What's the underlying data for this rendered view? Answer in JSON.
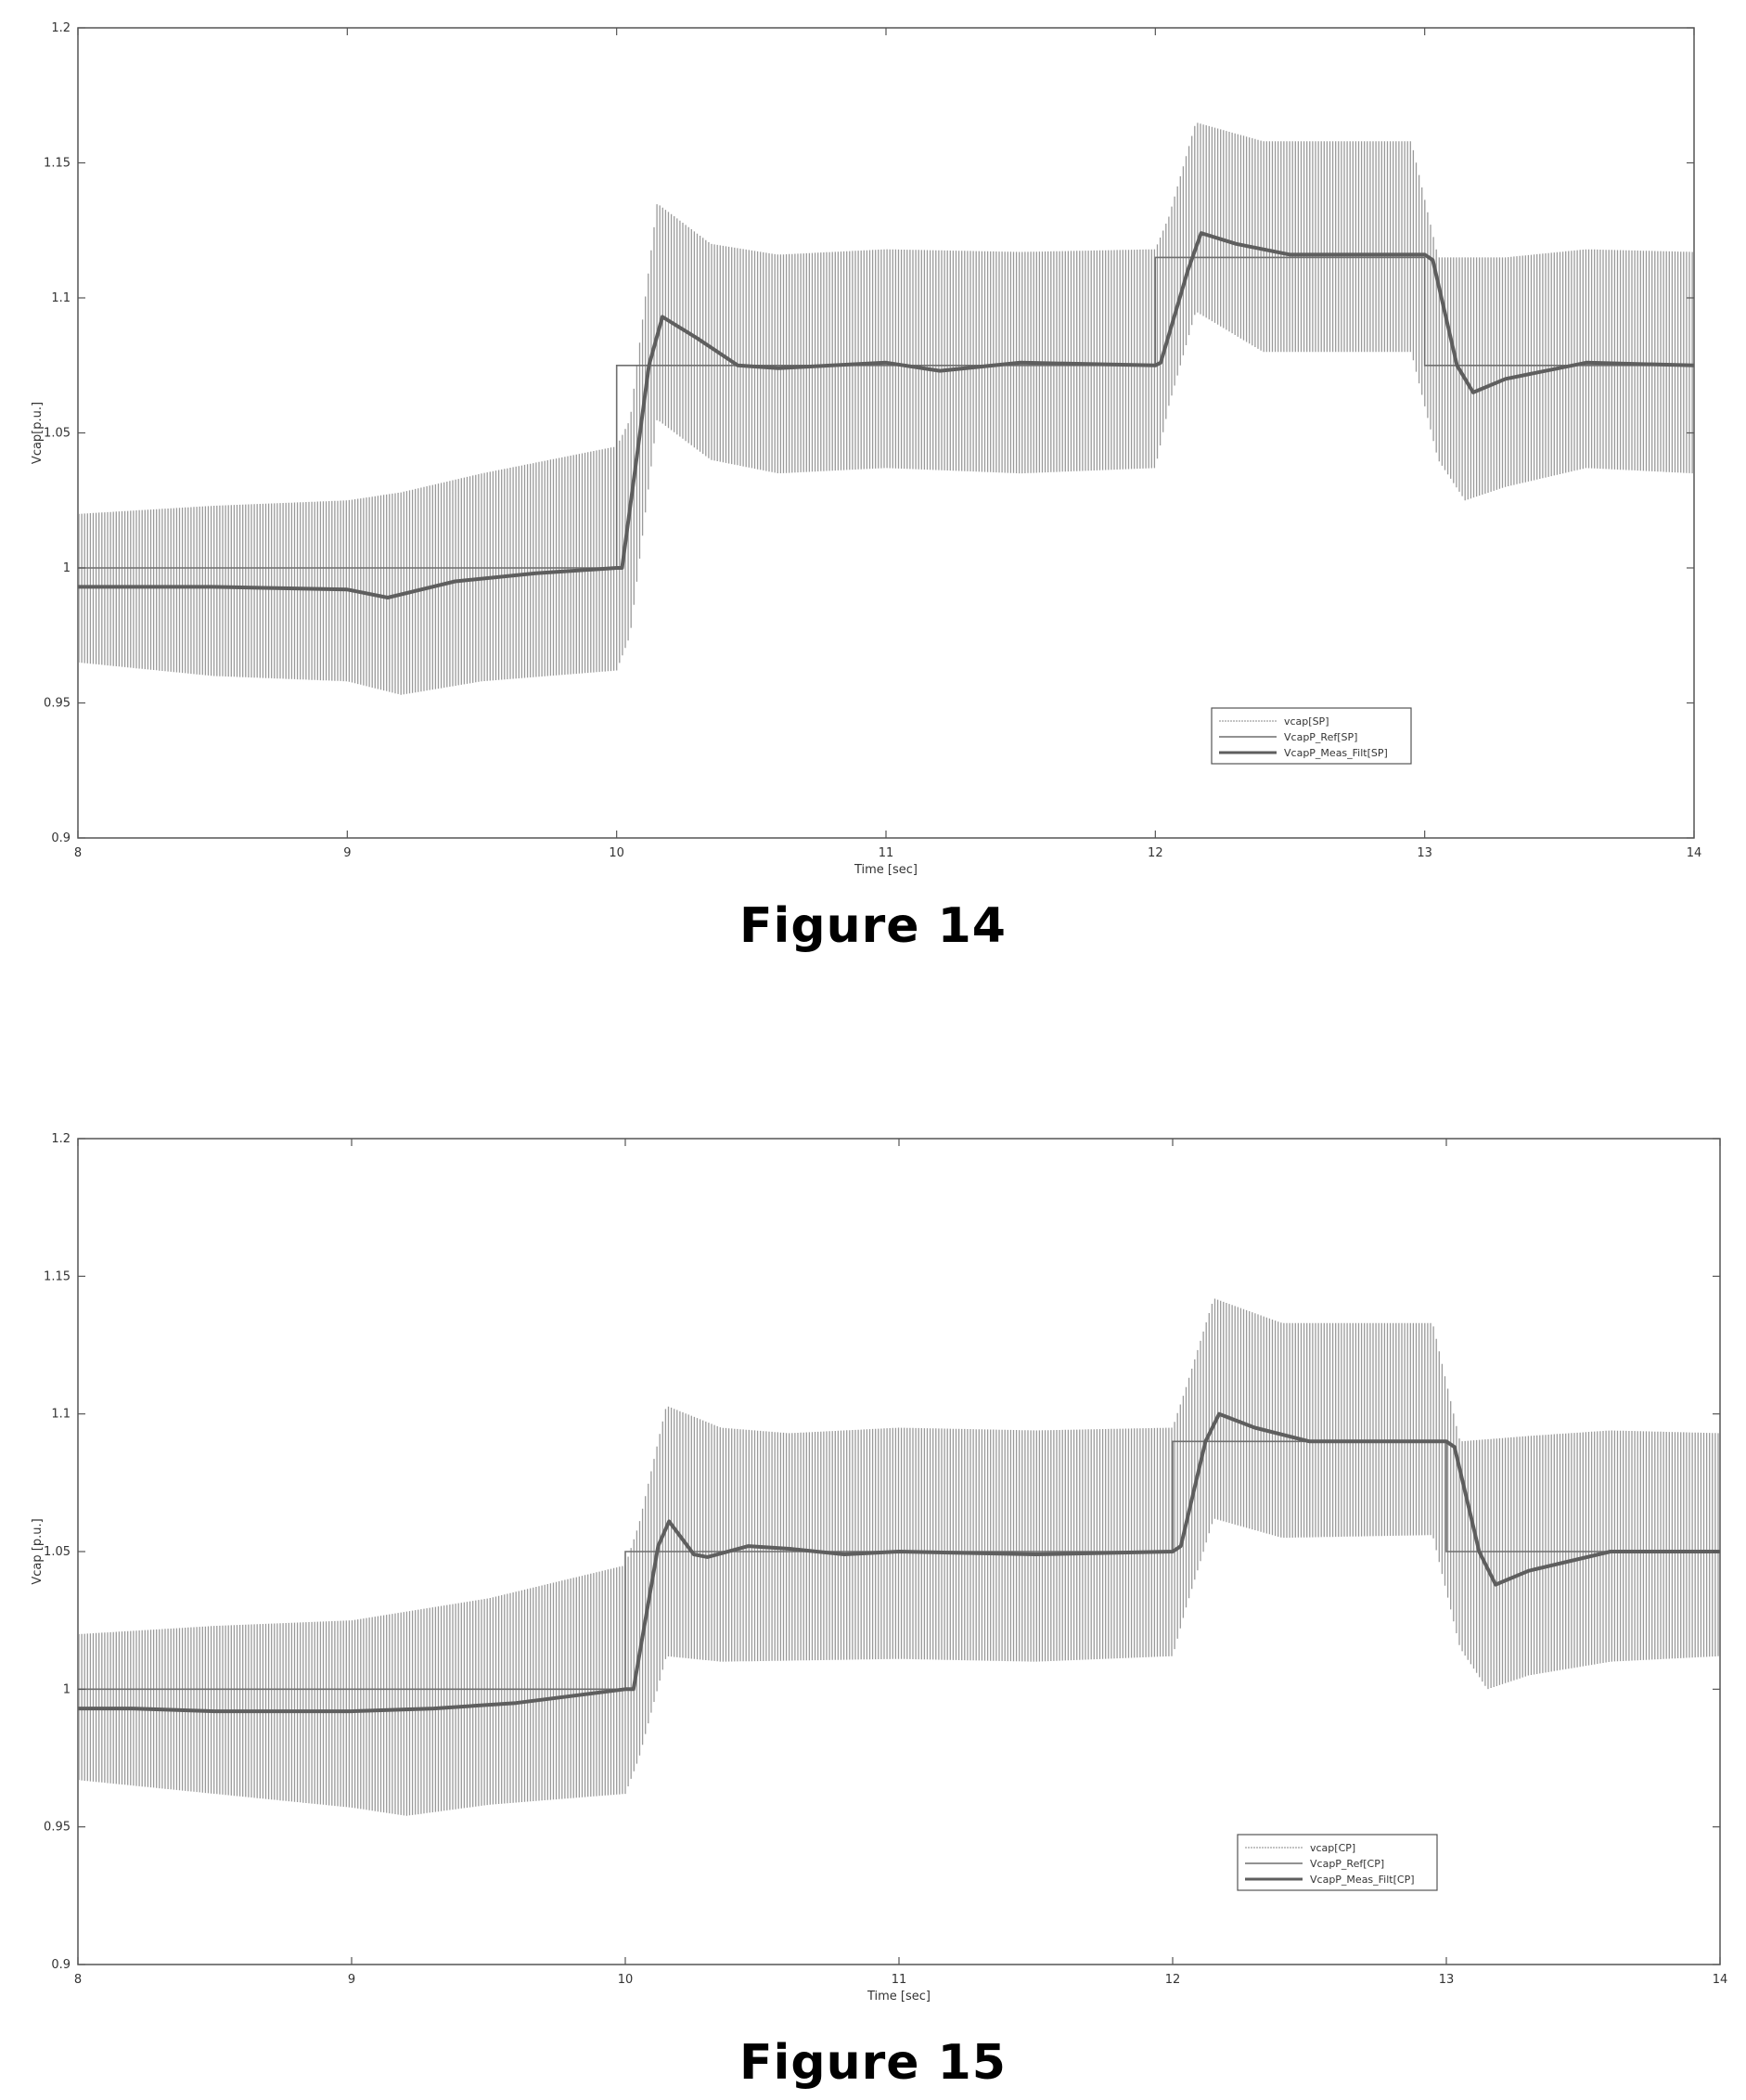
{
  "chart_data": [
    {
      "type": "line",
      "caption": "Figure 14",
      "xlabel": "Time [sec]",
      "ylabel": "Vcap[p.u.]",
      "xlim": [
        8,
        14
      ],
      "ylim": [
        0.9,
        1.2
      ],
      "xticks": [
        8,
        9,
        10,
        11,
        12,
        13,
        14
      ],
      "yticks": [
        0.9,
        0.95,
        1,
        1.05,
        1.1,
        1.15,
        1.2
      ],
      "ytick_labels": [
        "0.9",
        "0.95",
        "1",
        "1.05",
        "1.1",
        "1.15",
        "1.2"
      ],
      "grid": false,
      "legend_position": "lower-right",
      "series": [
        {
          "name": "vcap[SP]",
          "kind": "ripple",
          "upper": [
            [
              8,
              1.02
            ],
            [
              8.5,
              1.023
            ],
            [
              9,
              1.025
            ],
            [
              9.2,
              1.028
            ],
            [
              9.5,
              1.035
            ],
            [
              10,
              1.045
            ],
            [
              10.05,
              1.055
            ],
            [
              10.15,
              1.135
            ],
            [
              10.35,
              1.12
            ],
            [
              10.6,
              1.116
            ],
            [
              11,
              1.118
            ],
            [
              11.5,
              1.117
            ],
            [
              12,
              1.118
            ],
            [
              12.05,
              1.13
            ],
            [
              12.15,
              1.165
            ],
            [
              12.4,
              1.158
            ],
            [
              12.95,
              1.158
            ],
            [
              13.05,
              1.115
            ],
            [
              13.3,
              1.115
            ],
            [
              13.6,
              1.118
            ],
            [
              14,
              1.117
            ]
          ],
          "lower": [
            [
              8,
              0.965
            ],
            [
              8.5,
              0.96
            ],
            [
              9,
              0.958
            ],
            [
              9.2,
              0.953
            ],
            [
              9.5,
              0.958
            ],
            [
              10,
              0.962
            ],
            [
              10.05,
              0.975
            ],
            [
              10.15,
              1.055
            ],
            [
              10.35,
              1.04
            ],
            [
              10.6,
              1.035
            ],
            [
              11,
              1.037
            ],
            [
              11.5,
              1.035
            ],
            [
              12,
              1.037
            ],
            [
              12.05,
              1.06
            ],
            [
              12.15,
              1.095
            ],
            [
              12.4,
              1.08
            ],
            [
              12.95,
              1.08
            ],
            [
              13.05,
              1.04
            ],
            [
              13.15,
              1.025
            ],
            [
              13.3,
              1.03
            ],
            [
              13.6,
              1.037
            ],
            [
              14,
              1.035
            ]
          ]
        },
        {
          "name": "VcapP_Ref[SP]",
          "kind": "step",
          "points": [
            [
              8,
              1.0
            ],
            [
              10,
              1.0
            ],
            [
              10,
              1.075
            ],
            [
              12,
              1.075
            ],
            [
              12,
              1.115
            ],
            [
              13,
              1.115
            ],
            [
              13,
              1.075
            ],
            [
              14,
              1.075
            ]
          ]
        },
        {
          "name": "VcapP_Meas_Filt[SP]",
          "kind": "line",
          "points": [
            [
              8,
              0.993
            ],
            [
              8.5,
              0.993
            ],
            [
              9,
              0.992
            ],
            [
              9.15,
              0.989
            ],
            [
              9.4,
              0.995
            ],
            [
              9.7,
              0.998
            ],
            [
              10,
              1.0
            ],
            [
              10.02,
              1.0
            ],
            [
              10.12,
              1.075
            ],
            [
              10.17,
              1.093
            ],
            [
              10.3,
              1.085
            ],
            [
              10.45,
              1.075
            ],
            [
              10.6,
              1.074
            ],
            [
              11,
              1.076
            ],
            [
              11.2,
              1.073
            ],
            [
              11.5,
              1.076
            ],
            [
              12,
              1.075
            ],
            [
              12.02,
              1.076
            ],
            [
              12.12,
              1.11
            ],
            [
              12.17,
              1.124
            ],
            [
              12.3,
              1.12
            ],
            [
              12.5,
              1.116
            ],
            [
              13,
              1.116
            ],
            [
              13.03,
              1.114
            ],
            [
              13.12,
              1.075
            ],
            [
              13.18,
              1.065
            ],
            [
              13.3,
              1.07
            ],
            [
              13.6,
              1.076
            ],
            [
              14,
              1.075
            ]
          ]
        }
      ]
    },
    {
      "type": "line",
      "caption": "Figure 15",
      "xlabel": "Time [sec]",
      "ylabel": "Vcap [p.u.]",
      "xlim": [
        8,
        14
      ],
      "ylim": [
        0.9,
        1.2
      ],
      "xticks": [
        8,
        9,
        10,
        11,
        12,
        13,
        14
      ],
      "yticks": [
        0.9,
        0.95,
        1,
        1.05,
        1.1,
        1.15,
        1.2
      ],
      "ytick_labels": [
        "0.9",
        "0.95",
        "1",
        "1.05",
        "1.1",
        "1.15",
        "1.2"
      ],
      "grid": false,
      "legend_position": "lower-right",
      "series": [
        {
          "name": "vcap[CP]",
          "kind": "ripple",
          "upper": [
            [
              8,
              1.02
            ],
            [
              8.5,
              1.023
            ],
            [
              9,
              1.025
            ],
            [
              9.5,
              1.033
            ],
            [
              10,
              1.045
            ],
            [
              10.05,
              1.06
            ],
            [
              10.15,
              1.103
            ],
            [
              10.35,
              1.095
            ],
            [
              10.6,
              1.093
            ],
            [
              11,
              1.095
            ],
            [
              11.5,
              1.094
            ],
            [
              12,
              1.095
            ],
            [
              12.05,
              1.11
            ],
            [
              12.15,
              1.142
            ],
            [
              12.4,
              1.133
            ],
            [
              12.95,
              1.133
            ],
            [
              13.05,
              1.09
            ],
            [
              13.3,
              1.092
            ],
            [
              13.6,
              1.094
            ],
            [
              14,
              1.093
            ]
          ],
          "lower": [
            [
              8,
              0.967
            ],
            [
              8.5,
              0.962
            ],
            [
              9,
              0.957
            ],
            [
              9.2,
              0.954
            ],
            [
              9.5,
              0.958
            ],
            [
              10,
              0.962
            ],
            [
              10.05,
              0.975
            ],
            [
              10.15,
              1.012
            ],
            [
              10.35,
              1.01
            ],
            [
              11,
              1.011
            ],
            [
              11.5,
              1.01
            ],
            [
              12,
              1.012
            ],
            [
              12.05,
              1.03
            ],
            [
              12.15,
              1.062
            ],
            [
              12.4,
              1.055
            ],
            [
              12.95,
              1.056
            ],
            [
              13.05,
              1.015
            ],
            [
              13.15,
              1.0
            ],
            [
              13.3,
              1.005
            ],
            [
              13.6,
              1.01
            ],
            [
              14,
              1.012
            ]
          ]
        },
        {
          "name": "VcapP_Ref[CP]",
          "kind": "step",
          "points": [
            [
              8,
              1.0
            ],
            [
              10,
              1.0
            ],
            [
              10,
              1.05
            ],
            [
              12,
              1.05
            ],
            [
              12,
              1.09
            ],
            [
              13,
              1.09
            ],
            [
              13,
              1.05
            ],
            [
              14,
              1.05
            ]
          ]
        },
        {
          "name": "VcapP_Meas_Filt[CP]",
          "kind": "line",
          "points": [
            [
              8,
              0.993
            ],
            [
              8.2,
              0.993
            ],
            [
              8.5,
              0.992
            ],
            [
              9,
              0.992
            ],
            [
              9.3,
              0.993
            ],
            [
              9.6,
              0.995
            ],
            [
              10,
              1.0
            ],
            [
              10.03,
              1.0
            ],
            [
              10.12,
              1.052
            ],
            [
              10.16,
              1.061
            ],
            [
              10.25,
              1.049
            ],
            [
              10.3,
              1.048
            ],
            [
              10.45,
              1.052
            ],
            [
              10.6,
              1.051
            ],
            [
              10.8,
              1.049
            ],
            [
              11,
              1.05
            ],
            [
              11.5,
              1.049
            ],
            [
              12,
              1.05
            ],
            [
              12.03,
              1.052
            ],
            [
              12.12,
              1.09
            ],
            [
              12.17,
              1.1
            ],
            [
              12.3,
              1.095
            ],
            [
              12.5,
              1.09
            ],
            [
              13,
              1.09
            ],
            [
              13.03,
              1.088
            ],
            [
              13.12,
              1.05
            ],
            [
              13.18,
              1.038
            ],
            [
              13.3,
              1.043
            ],
            [
              13.6,
              1.05
            ],
            [
              14,
              1.05
            ]
          ]
        }
      ]
    }
  ]
}
